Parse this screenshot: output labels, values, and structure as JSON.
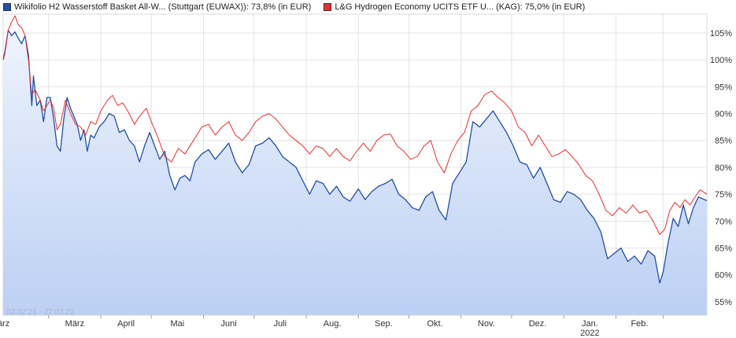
{
  "legend": {
    "series1": "Wikifolio H2 Wasserstoff Basket All-W... (Stuttgart (EUWAX)): 73,8% (in EUR)",
    "series2": "L&G Hydrogen Economy UCITS ETF U... (KAG): 75,0% (in EUR)"
  },
  "colors": {
    "series1": "#1f4fa8",
    "series2": "#e8302e",
    "area_top": "#eef3fd",
    "area_bottom": "#bcd0f3",
    "grid": "#e3e3e3"
  },
  "chart_data": {
    "type": "line",
    "date_range_label": "02.02.21 - 27.03.22",
    "x_labels": [
      "März",
      "April",
      "Mai",
      "Juni",
      "Juli",
      "Aug.",
      "Sep.",
      "Okt.",
      "Nov.",
      "Dez.",
      "Jan.",
      "Feb.",
      "März"
    ],
    "x_sublabel": {
      "index": 10,
      "text": "2022"
    },
    "y_ticks": [
      "55%",
      "60%",
      "65%",
      "70%",
      "75%",
      "80%",
      "85%",
      "90%",
      "95%",
      "100%",
      "105%"
    ],
    "y_tick_values": [
      55,
      60,
      65,
      70,
      75,
      80,
      85,
      90,
      95,
      100,
      105
    ],
    "ylim": [
      52.5,
      108.5
    ],
    "x_domain": [
      "2021-02-02",
      "2022-03-27"
    ],
    "grid": true,
    "series": [
      {
        "name": "Wikifolio H2 Wasserstoff Basket All-W... (Stuttgart (EUWAX)): 73,8% (in EUR)",
        "area": true,
        "points": [
          [
            "2021-02-02",
            100
          ],
          [
            "2021-02-03",
            101.5
          ],
          [
            "2021-02-05",
            105.5
          ],
          [
            "2021-02-07",
            104.5
          ],
          [
            "2021-02-09",
            105.2
          ],
          [
            "2021-02-11",
            104
          ],
          [
            "2021-02-13",
            103
          ],
          [
            "2021-02-15",
            104.5
          ],
          [
            "2021-02-17",
            101
          ],
          [
            "2021-02-19",
            91.5
          ],
          [
            "2021-02-20",
            97
          ],
          [
            "2021-02-22",
            91.5
          ],
          [
            "2021-02-24",
            92.5
          ],
          [
            "2021-02-26",
            88.5
          ],
          [
            "2021-02-28",
            93
          ],
          [
            "2021-03-02",
            93
          ],
          [
            "2021-03-04",
            89
          ],
          [
            "2021-03-06",
            84
          ],
          [
            "2021-03-08",
            83
          ],
          [
            "2021-03-10",
            89
          ],
          [
            "2021-03-12",
            93
          ],
          [
            "2021-03-14",
            91
          ],
          [
            "2021-03-16",
            89.5
          ],
          [
            "2021-03-18",
            88
          ],
          [
            "2021-03-20",
            85
          ],
          [
            "2021-03-22",
            87
          ],
          [
            "2021-03-24",
            83
          ],
          [
            "2021-03-26",
            86
          ],
          [
            "2021-03-28",
            85.5
          ],
          [
            "2021-03-31",
            87.5
          ],
          [
            "2021-04-03",
            88.5
          ],
          [
            "2021-04-06",
            90
          ],
          [
            "2021-04-09",
            89.5
          ],
          [
            "2021-04-12",
            86.5
          ],
          [
            "2021-04-15",
            87
          ],
          [
            "2021-04-18",
            85
          ],
          [
            "2021-04-21",
            84
          ],
          [
            "2021-04-24",
            81
          ],
          [
            "2021-04-27",
            84
          ],
          [
            "2021-04-30",
            86.5
          ],
          [
            "2021-05-03",
            84
          ],
          [
            "2021-05-06",
            81.5
          ],
          [
            "2021-05-09",
            83
          ],
          [
            "2021-05-12",
            78.5
          ],
          [
            "2021-05-15",
            75.8
          ],
          [
            "2021-05-18",
            78
          ],
          [
            "2021-05-21",
            78.5
          ],
          [
            "2021-05-24",
            77.5
          ],
          [
            "2021-05-27",
            81
          ],
          [
            "2021-05-31",
            82.5
          ],
          [
            "2021-06-04",
            83.3
          ],
          [
            "2021-06-08",
            81.5
          ],
          [
            "2021-06-12",
            83
          ],
          [
            "2021-06-16",
            84.5
          ],
          [
            "2021-06-20",
            81
          ],
          [
            "2021-06-24",
            79
          ],
          [
            "2021-06-28",
            80.5
          ],
          [
            "2021-07-02",
            84
          ],
          [
            "2021-07-06",
            84.5
          ],
          [
            "2021-07-10",
            85.5
          ],
          [
            "2021-07-14",
            84
          ],
          [
            "2021-07-18",
            82
          ],
          [
            "2021-07-22",
            81
          ],
          [
            "2021-07-26",
            80
          ],
          [
            "2021-07-30",
            77.5
          ],
          [
            "2021-08-03",
            75
          ],
          [
            "2021-08-07",
            77.5
          ],
          [
            "2021-08-11",
            77
          ],
          [
            "2021-08-15",
            75
          ],
          [
            "2021-08-19",
            76.5
          ],
          [
            "2021-08-23",
            74.5
          ],
          [
            "2021-08-27",
            73.7
          ],
          [
            "2021-09-01",
            76
          ],
          [
            "2021-09-05",
            74
          ],
          [
            "2021-09-09",
            75.5
          ],
          [
            "2021-09-13",
            76.5
          ],
          [
            "2021-09-17",
            77
          ],
          [
            "2021-09-21",
            77.8
          ],
          [
            "2021-09-25",
            75
          ],
          [
            "2021-09-29",
            74
          ],
          [
            "2021-10-03",
            72.5
          ],
          [
            "2021-10-07",
            72
          ],
          [
            "2021-10-11",
            74.5
          ],
          [
            "2021-10-15",
            75.5
          ],
          [
            "2021-10-19",
            72
          ],
          [
            "2021-10-23",
            70.2
          ],
          [
            "2021-10-27",
            77
          ],
          [
            "2021-10-31",
            79
          ],
          [
            "2021-11-04",
            81
          ],
          [
            "2021-11-08",
            88.5
          ],
          [
            "2021-11-12",
            87.5
          ],
          [
            "2021-11-16",
            89
          ],
          [
            "2021-11-20",
            90.5
          ],
          [
            "2021-11-24",
            88.5
          ],
          [
            "2021-11-28",
            86.5
          ],
          [
            "2021-12-02",
            84
          ],
          [
            "2021-12-06",
            81
          ],
          [
            "2021-12-10",
            80.5
          ],
          [
            "2021-12-14",
            78
          ],
          [
            "2021-12-18",
            80
          ],
          [
            "2021-12-22",
            77
          ],
          [
            "2021-12-26",
            74
          ],
          [
            "2021-12-30",
            73.5
          ],
          [
            "2022-01-03",
            75.5
          ],
          [
            "2022-01-07",
            75
          ],
          [
            "2022-01-11",
            74
          ],
          [
            "2022-01-15",
            72
          ],
          [
            "2022-01-19",
            70.5
          ],
          [
            "2022-01-23",
            68
          ],
          [
            "2022-01-27",
            63
          ],
          [
            "2022-01-31",
            64
          ],
          [
            "2022-02-04",
            65
          ],
          [
            "2022-02-08",
            62.5
          ],
          [
            "2022-02-12",
            63.5
          ],
          [
            "2022-02-16",
            62
          ],
          [
            "2022-02-20",
            64.5
          ],
          [
            "2022-02-24",
            63.5
          ],
          [
            "2022-02-27",
            58.5
          ],
          [
            "2022-03-01",
            60.5
          ],
          [
            "2022-03-04",
            66
          ],
          [
            "2022-03-07",
            70.5
          ],
          [
            "2022-03-10",
            69
          ],
          [
            "2022-03-13",
            73
          ],
          [
            "2022-03-16",
            69.5
          ],
          [
            "2022-03-19",
            72.5
          ],
          [
            "2022-03-22",
            74.5
          ],
          [
            "2022-03-27",
            73.8
          ]
        ]
      },
      {
        "name": "L&G Hydrogen Economy UCITS ETF U... (KAG): 75,0% (in EUR)",
        "area": false,
        "points": [
          [
            "2021-02-02",
            100
          ],
          [
            "2021-02-03",
            101
          ],
          [
            "2021-02-05",
            105.5
          ],
          [
            "2021-02-07",
            107
          ],
          [
            "2021-02-09",
            108.2
          ],
          [
            "2021-02-11",
            106.5
          ],
          [
            "2021-02-13",
            106
          ],
          [
            "2021-02-15",
            104.5
          ],
          [
            "2021-02-17",
            100
          ],
          [
            "2021-02-19",
            93.5
          ],
          [
            "2021-02-21",
            94.5
          ],
          [
            "2021-02-24",
            92.5
          ],
          [
            "2021-02-26",
            90.5
          ],
          [
            "2021-02-28",
            91.5
          ],
          [
            "2021-03-02",
            92.5
          ],
          [
            "2021-03-04",
            91
          ],
          [
            "2021-03-06",
            87
          ],
          [
            "2021-03-08",
            88
          ],
          [
            "2021-03-11",
            92.5
          ],
          [
            "2021-03-14",
            90
          ],
          [
            "2021-03-17",
            88
          ],
          [
            "2021-03-20",
            87.5
          ],
          [
            "2021-03-23",
            86
          ],
          [
            "2021-03-26",
            88.5
          ],
          [
            "2021-03-29",
            88
          ],
          [
            "2021-04-01",
            90.5
          ],
          [
            "2021-04-05",
            92.5
          ],
          [
            "2021-04-08",
            93.4
          ],
          [
            "2021-04-11",
            91.5
          ],
          [
            "2021-04-14",
            92
          ],
          [
            "2021-04-17",
            90.5
          ],
          [
            "2021-04-21",
            88
          ],
          [
            "2021-04-24",
            89.5
          ],
          [
            "2021-04-28",
            91
          ],
          [
            "2021-05-01",
            88.5
          ],
          [
            "2021-05-05",
            85.5
          ],
          [
            "2021-05-09",
            82
          ],
          [
            "2021-05-13",
            81
          ],
          [
            "2021-05-17",
            83.5
          ],
          [
            "2021-05-21",
            82.5
          ],
          [
            "2021-05-26",
            85
          ],
          [
            "2021-05-31",
            87.5
          ],
          [
            "2021-06-04",
            88
          ],
          [
            "2021-06-08",
            86
          ],
          [
            "2021-06-12",
            87.5
          ],
          [
            "2021-06-16",
            88.5
          ],
          [
            "2021-06-20",
            86
          ],
          [
            "2021-06-24",
            85
          ],
          [
            "2021-06-28",
            86.5
          ],
          [
            "2021-07-02",
            88.5
          ],
          [
            "2021-07-06",
            89.5
          ],
          [
            "2021-07-10",
            90
          ],
          [
            "2021-07-14",
            89
          ],
          [
            "2021-07-18",
            87.5
          ],
          [
            "2021-07-22",
            86
          ],
          [
            "2021-07-26",
            85
          ],
          [
            "2021-07-30",
            84
          ],
          [
            "2021-08-03",
            82.5
          ],
          [
            "2021-08-07",
            84
          ],
          [
            "2021-08-11",
            83.5
          ],
          [
            "2021-08-15",
            82
          ],
          [
            "2021-08-19",
            83.5
          ],
          [
            "2021-08-23",
            82
          ],
          [
            "2021-08-27",
            81.2
          ],
          [
            "2021-08-31",
            83
          ],
          [
            "2021-09-04",
            84.5
          ],
          [
            "2021-09-08",
            83
          ],
          [
            "2021-09-12",
            85
          ],
          [
            "2021-09-16",
            86
          ],
          [
            "2021-09-20",
            86.2
          ],
          [
            "2021-09-24",
            84
          ],
          [
            "2021-09-28",
            83
          ],
          [
            "2021-10-02",
            81.5
          ],
          [
            "2021-10-06",
            82
          ],
          [
            "2021-10-10",
            84
          ],
          [
            "2021-10-14",
            85
          ],
          [
            "2021-10-18",
            81
          ],
          [
            "2021-10-22",
            79
          ],
          [
            "2021-10-26",
            82.5
          ],
          [
            "2021-10-30",
            85
          ],
          [
            "2021-11-03",
            86.5
          ],
          [
            "2021-11-07",
            90.5
          ],
          [
            "2021-11-11",
            91.5
          ],
          [
            "2021-11-15",
            93.5
          ],
          [
            "2021-11-19",
            94.2
          ],
          [
            "2021-11-23",
            93
          ],
          [
            "2021-11-27",
            92
          ],
          [
            "2021-12-01",
            90.5
          ],
          [
            "2021-12-05",
            87.5
          ],
          [
            "2021-12-09",
            86.5
          ],
          [
            "2021-12-13",
            84
          ],
          [
            "2021-12-17",
            86
          ],
          [
            "2021-12-21",
            84
          ],
          [
            "2021-12-25",
            82
          ],
          [
            "2021-12-29",
            82.5
          ],
          [
            "2022-01-02",
            83.3
          ],
          [
            "2022-01-06",
            82
          ],
          [
            "2022-01-10",
            80.5
          ],
          [
            "2022-01-14",
            78.5
          ],
          [
            "2022-01-18",
            77.5
          ],
          [
            "2022-01-22",
            75
          ],
          [
            "2022-01-26",
            72
          ],
          [
            "2022-01-30",
            71
          ],
          [
            "2022-02-03",
            72.5
          ],
          [
            "2022-02-07",
            71.5
          ],
          [
            "2022-02-11",
            73
          ],
          [
            "2022-02-15",
            71.5
          ],
          [
            "2022-02-19",
            72
          ],
          [
            "2022-02-23",
            70
          ],
          [
            "2022-02-27",
            67.5
          ],
          [
            "2022-03-02",
            68.5
          ],
          [
            "2022-03-05",
            72
          ],
          [
            "2022-03-08",
            73.5
          ],
          [
            "2022-03-11",
            72.5
          ],
          [
            "2022-03-14",
            74
          ],
          [
            "2022-03-17",
            73
          ],
          [
            "2022-03-20",
            74.5
          ],
          [
            "2022-03-23",
            75.8
          ],
          [
            "2022-03-27",
            75
          ]
        ]
      }
    ]
  }
}
